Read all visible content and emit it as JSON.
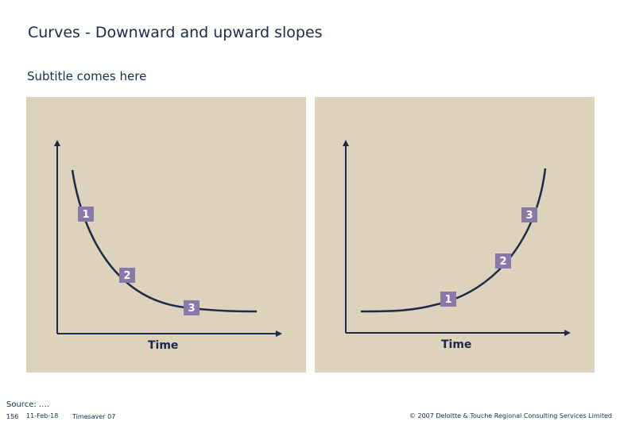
{
  "title": "Curves - Downward and upward slopes",
  "subtitle": "Subtitle comes here",
  "colors": {
    "panel": "#ddd3bc",
    "curve": "#1c2a4a",
    "marker": "#8a78a8",
    "text": "#1c2a4a"
  },
  "diagrams": [
    {
      "type": "downward-curve",
      "axis_label": "Time",
      "markers": [
        "1",
        "2",
        "3"
      ]
    },
    {
      "type": "upward-curve",
      "axis_label": "Time",
      "markers": [
        "1",
        "2",
        "3"
      ]
    }
  ],
  "footer": {
    "source": "Source: ….",
    "page_number": "156",
    "date": "11-Feb-18",
    "template": "Timesaver 07",
    "copyright": "© 2007 Deloitte & Touche Regional Consulting Services Limited"
  }
}
